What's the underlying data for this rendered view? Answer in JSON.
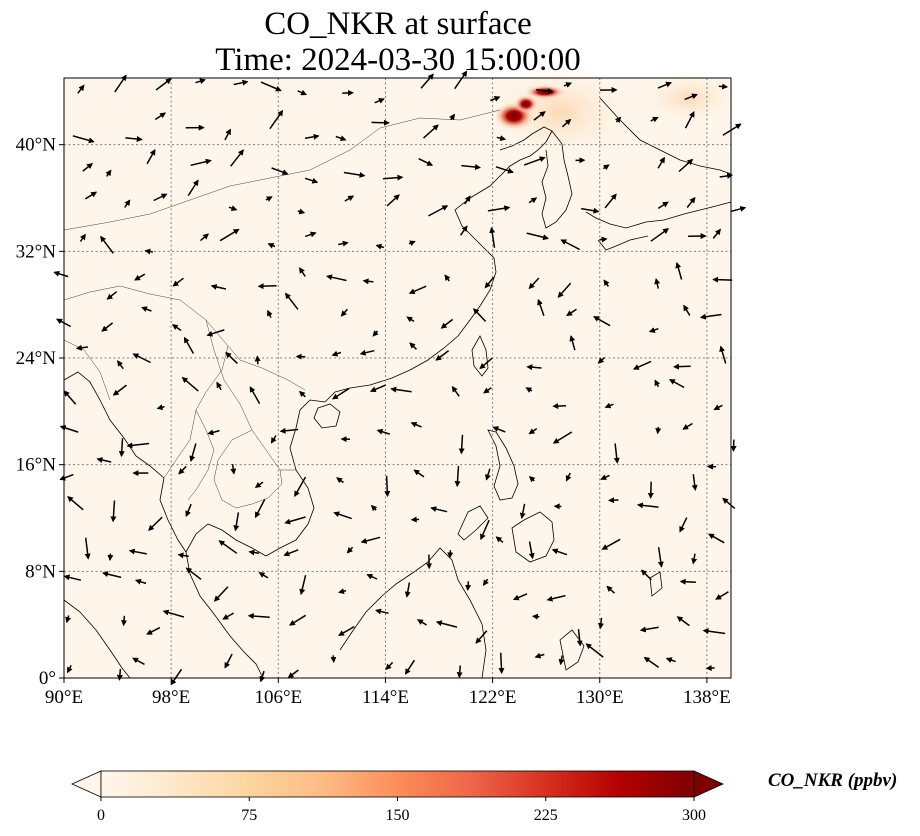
{
  "title": {
    "line1": "CO_NKR at surface",
    "line2": "Time: 2024-03-30 15:00:00"
  },
  "map": {
    "lon_range": [
      90,
      139.8
    ],
    "lat_range": [
      0,
      45
    ],
    "lon_ticks": [
      {
        "value": 90,
        "label": "90°E"
      },
      {
        "value": 98,
        "label": "98°E"
      },
      {
        "value": 106,
        "label": "106°E"
      },
      {
        "value": 114,
        "label": "114°E"
      },
      {
        "value": 122,
        "label": "122°E"
      },
      {
        "value": 130,
        "label": "130°E"
      },
      {
        "value": 138,
        "label": "138°E"
      }
    ],
    "lat_ticks": [
      {
        "value": 0,
        "label": "0°"
      },
      {
        "value": 8,
        "label": "8°N"
      },
      {
        "value": 16,
        "label": "16°N"
      },
      {
        "value": 24,
        "label": "24°N"
      },
      {
        "value": 32,
        "label": "32°N"
      },
      {
        "value": 40,
        "label": "40°N"
      }
    ],
    "gridlines": "dotted",
    "background_fill": "#fff6eb",
    "plume_color": "#7f0000",
    "coastline_color": "#000000"
  },
  "colorbar": {
    "label": "CO_NKR (ppbv)",
    "ticks": [
      0,
      75,
      150,
      225,
      300
    ],
    "range": [
      0,
      300
    ],
    "extend": "both",
    "colormap": [
      "#fff7ec",
      "#fee8c8",
      "#fdd49e",
      "#fdbb84",
      "#fc8d59",
      "#ef6548",
      "#d7301f",
      "#b30000",
      "#7f0000"
    ]
  }
}
